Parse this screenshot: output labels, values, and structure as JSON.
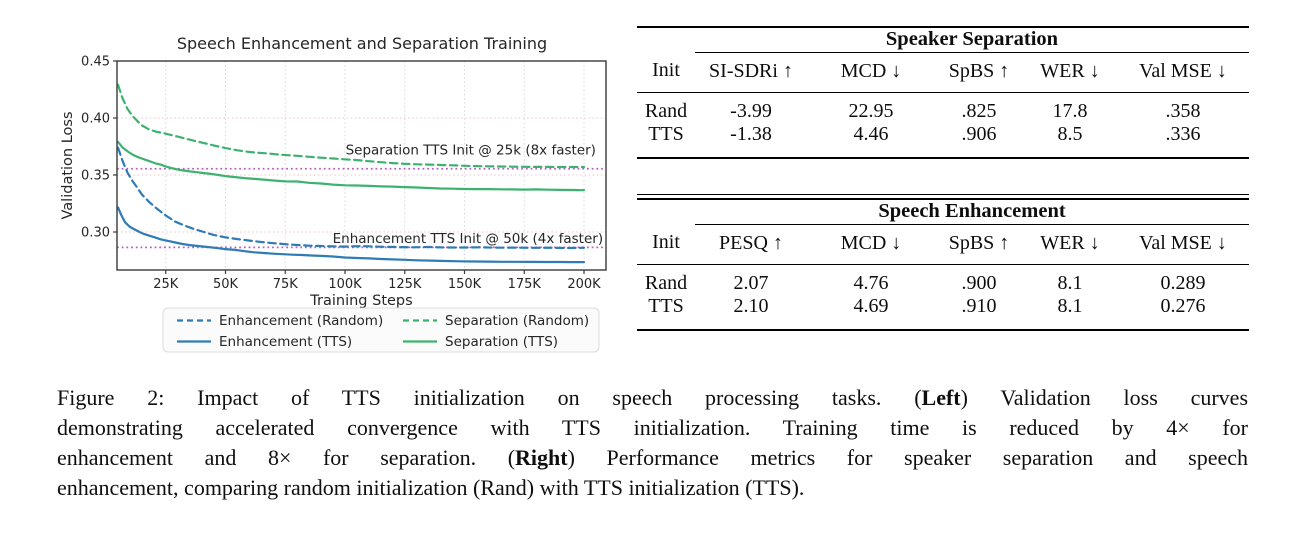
{
  "chart_data": {
    "type": "line",
    "title": "Speech Enhancement and Separation Training",
    "xlabel": "Training Steps",
    "ylabel": "Validation Loss",
    "x_unit": "thousands of steps",
    "xlim_k": [
      4.6,
      209
    ],
    "ylim": [
      0.2667,
      0.45
    ],
    "grid": true,
    "legend_position": "below",
    "xticks": [
      {
        "value": 25,
        "label": "25K"
      },
      {
        "value": 50,
        "label": "50K"
      },
      {
        "value": 75,
        "label": "75K"
      },
      {
        "value": 100,
        "label": "100K"
      },
      {
        "value": 125,
        "label": "125K"
      },
      {
        "value": 150,
        "label": "150K"
      },
      {
        "value": 175,
        "label": "175K"
      },
      {
        "value": 200,
        "label": "200K"
      }
    ],
    "yticks": [
      {
        "value": 0.45,
        "label": "0.45"
      },
      {
        "value": 0.4,
        "label": "0.40"
      },
      {
        "value": 0.35,
        "label": "0.35"
      },
      {
        "value": 0.3,
        "label": "0.30"
      }
    ],
    "grid_y": [
      0.4,
      0.35,
      0.3
    ],
    "style": {
      "grid_x_color": "#d8d8d8",
      "grid_y_color": "#f0c3ca",
      "ref_color": "#b85fc2",
      "annotation_color": "#9e6bbf",
      "blue": "#2e7bb5",
      "green": "#3db26f"
    },
    "reference_lines": [
      {
        "y": 0.3555,
        "meaning": "Separation TTS loss level at 25k"
      },
      {
        "y": 0.2865,
        "meaning": "Enhancement TTS loss level at 50k"
      }
    ],
    "annotations": [
      {
        "text": "Separation TTS Init @ 25k (8x faster)",
        "x": 205,
        "y": 0.3715
      },
      {
        "text": "Enhancement TTS Init @ 50k (4x faster)",
        "x": 208,
        "y": 0.294
      }
    ],
    "series": [
      {
        "name": "Enhancement (Random)",
        "color": "#2e7bb5",
        "dashed": true,
        "points": [
          [
            5,
            0.374
          ],
          [
            7,
            0.362
          ],
          [
            9,
            0.352
          ],
          [
            11,
            0.345
          ],
          [
            13,
            0.339
          ],
          [
            15,
            0.333
          ],
          [
            18,
            0.3265
          ],
          [
            21,
            0.321
          ],
          [
            25,
            0.3145
          ],
          [
            29,
            0.309
          ],
          [
            33,
            0.3055
          ],
          [
            37,
            0.3025
          ],
          [
            41,
            0.3
          ],
          [
            45,
            0.2975
          ],
          [
            50,
            0.2953
          ],
          [
            55,
            0.2938
          ],
          [
            60,
            0.2925
          ],
          [
            65,
            0.2912
          ],
          [
            70,
            0.2902
          ],
          [
            75,
            0.2893
          ],
          [
            80,
            0.2886
          ],
          [
            85,
            0.288
          ],
          [
            90,
            0.2877
          ],
          [
            95,
            0.2874
          ],
          [
            100,
            0.2872
          ],
          [
            107,
            0.2876
          ],
          [
            114,
            0.2871
          ],
          [
            121,
            0.2868
          ],
          [
            128,
            0.2866
          ],
          [
            135,
            0.2868
          ],
          [
            142,
            0.2864
          ],
          [
            150,
            0.2864
          ],
          [
            157,
            0.2866
          ],
          [
            164,
            0.2862
          ],
          [
            171,
            0.2863
          ],
          [
            178,
            0.2861
          ],
          [
            185,
            0.2862
          ],
          [
            192,
            0.286
          ],
          [
            200,
            0.2861
          ]
        ]
      },
      {
        "name": "Enhancement (TTS)",
        "color": "#2e7bb5",
        "dashed": false,
        "points": [
          [
            5,
            0.3215
          ],
          [
            6.5,
            0.3145
          ],
          [
            8,
            0.3085
          ],
          [
            10,
            0.3045
          ],
          [
            12,
            0.3022
          ],
          [
            14,
            0.3
          ],
          [
            16,
            0.2982
          ],
          [
            18,
            0.2968
          ],
          [
            20,
            0.2955
          ],
          [
            23,
            0.2935
          ],
          [
            26,
            0.2922
          ],
          [
            29,
            0.2908
          ],
          [
            32,
            0.2895
          ],
          [
            35,
            0.2885
          ],
          [
            38,
            0.2878
          ],
          [
            41,
            0.2872
          ],
          [
            44,
            0.2865
          ],
          [
            47,
            0.2858
          ],
          [
            50,
            0.285
          ],
          [
            54,
            0.2843
          ],
          [
            58,
            0.2832
          ],
          [
            62,
            0.2822
          ],
          [
            66,
            0.2816
          ],
          [
            70,
            0.281
          ],
          [
            74,
            0.2805
          ],
          [
            78,
            0.2801
          ],
          [
            82,
            0.2798
          ],
          [
            86,
            0.2794
          ],
          [
            90,
            0.279
          ],
          [
            95,
            0.2785
          ],
          [
            100,
            0.2776
          ],
          [
            105,
            0.2772
          ],
          [
            110,
            0.2768
          ],
          [
            115,
            0.2763
          ],
          [
            120,
            0.276
          ],
          [
            125,
            0.2756
          ],
          [
            130,
            0.2752
          ],
          [
            136,
            0.2749
          ],
          [
            142,
            0.2746
          ],
          [
            148,
            0.2743
          ],
          [
            154,
            0.2741
          ],
          [
            160,
            0.274
          ],
          [
            166,
            0.2739
          ],
          [
            172,
            0.2739
          ],
          [
            178,
            0.2738
          ],
          [
            184,
            0.2737
          ],
          [
            190,
            0.2737
          ],
          [
            195,
            0.2736
          ],
          [
            200,
            0.2736
          ]
        ]
      },
      {
        "name": "Separation (Random)",
        "color": "#3db26f",
        "dashed": true,
        "points": [
          [
            5,
            0.429
          ],
          [
            7,
            0.417
          ],
          [
            9,
            0.408
          ],
          [
            11,
            0.402
          ],
          [
            13,
            0.3975
          ],
          [
            15,
            0.3935
          ],
          [
            18,
            0.39
          ],
          [
            21,
            0.388
          ],
          [
            25,
            0.3862
          ],
          [
            29,
            0.3842
          ],
          [
            33,
            0.382
          ],
          [
            37,
            0.38
          ],
          [
            41,
            0.378
          ],
          [
            45,
            0.376
          ],
          [
            50,
            0.3736
          ],
          [
            55,
            0.3717
          ],
          [
            60,
            0.3702
          ],
          [
            64,
            0.3695
          ],
          [
            68,
            0.3689
          ],
          [
            72,
            0.368
          ],
          [
            76,
            0.3674
          ],
          [
            80,
            0.3668
          ],
          [
            85,
            0.366
          ],
          [
            90,
            0.3652
          ],
          [
            95,
            0.3645
          ],
          [
            100,
            0.3638
          ],
          [
            105,
            0.3631
          ],
          [
            110,
            0.3621
          ],
          [
            115,
            0.3612
          ],
          [
            120,
            0.3604
          ],
          [
            125,
            0.3598
          ],
          [
            130,
            0.3594
          ],
          [
            135,
            0.3591
          ],
          [
            140,
            0.3588
          ],
          [
            145,
            0.3585
          ],
          [
            150,
            0.3581
          ],
          [
            155,
            0.3578
          ],
          [
            160,
            0.3576
          ],
          [
            165,
            0.3575
          ],
          [
            170,
            0.3573
          ],
          [
            175,
            0.3572
          ],
          [
            180,
            0.3571
          ],
          [
            185,
            0.3571
          ],
          [
            190,
            0.357
          ],
          [
            195,
            0.357
          ],
          [
            200,
            0.357
          ]
        ]
      },
      {
        "name": "Separation (TTS)",
        "color": "#3db26f",
        "dashed": false,
        "points": [
          [
            5,
            0.379
          ],
          [
            7,
            0.374
          ],
          [
            9,
            0.3708
          ],
          [
            11,
            0.368
          ],
          [
            13,
            0.366
          ],
          [
            15,
            0.3645
          ],
          [
            17,
            0.363
          ],
          [
            19,
            0.3615
          ],
          [
            21,
            0.36
          ],
          [
            23,
            0.359
          ],
          [
            25,
            0.3575
          ],
          [
            27,
            0.3563
          ],
          [
            29,
            0.3553
          ],
          [
            32,
            0.354
          ],
          [
            35,
            0.3532
          ],
          [
            38,
            0.3525
          ],
          [
            41,
            0.3517
          ],
          [
            44,
            0.351
          ],
          [
            47,
            0.35
          ],
          [
            50,
            0.349
          ],
          [
            54,
            0.3482
          ],
          [
            58,
            0.3473
          ],
          [
            62,
            0.3466
          ],
          [
            66,
            0.346
          ],
          [
            70,
            0.3452
          ],
          [
            75,
            0.3444
          ],
          [
            80,
            0.3443
          ],
          [
            85,
            0.3432
          ],
          [
            90,
            0.3425
          ],
          [
            95,
            0.3416
          ],
          [
            100,
            0.341
          ],
          [
            105,
            0.3408
          ],
          [
            110,
            0.3404
          ],
          [
            115,
            0.34
          ],
          [
            120,
            0.3398
          ],
          [
            125,
            0.3394
          ],
          [
            130,
            0.339
          ],
          [
            135,
            0.3386
          ],
          [
            140,
            0.3382
          ],
          [
            145,
            0.338
          ],
          [
            150,
            0.3377
          ],
          [
            155,
            0.3376
          ],
          [
            160,
            0.3376
          ],
          [
            165,
            0.3375
          ],
          [
            170,
            0.3374
          ],
          [
            175,
            0.3372
          ],
          [
            180,
            0.3374
          ],
          [
            185,
            0.3371
          ],
          [
            190,
            0.3369
          ],
          [
            195,
            0.3368
          ],
          [
            200,
            0.3367
          ]
        ]
      }
    ]
  },
  "tables": [
    {
      "title": "Speaker Separation",
      "col0": "Init",
      "columns": [
        "SI-SDRi ↑",
        "MCD ↓",
        "SpBS ↑",
        "WER ↓",
        "Val MSE ↓"
      ],
      "rows": [
        [
          "Rand",
          "-3.99",
          "22.95",
          ".825",
          "17.8",
          ".358"
        ],
        [
          "TTS",
          "-1.38",
          "4.46",
          ".906",
          "8.5",
          ".336"
        ]
      ]
    },
    {
      "title": "Speech Enhancement",
      "col0": "Init",
      "columns": [
        "PESQ ↑",
        "MCD ↓",
        "SpBS ↑",
        "WER ↓",
        "Val MSE ↓"
      ],
      "rows": [
        [
          "Rand",
          "2.07",
          "4.76",
          ".900",
          "8.1",
          "0.289"
        ],
        [
          "TTS",
          "2.10",
          "4.69",
          ".910",
          "8.1",
          "0.276"
        ]
      ]
    }
  ],
  "caption": {
    "line1_pre": "Figure 2: Impact of TTS initialization on speech processing tasks. (",
    "line1_bold": "Left",
    "line1_post": ") Validation loss curves",
    "line2": "demonstrating accelerated convergence with TTS initialization. Training time is reduced by 4× for",
    "line3_pre": "enhancement and 8× for separation. (",
    "line3_bold": "Right",
    "line3_post": ") Performance metrics for speaker separation and speech",
    "line4": "enhancement, comparing random initialization (Rand) with TTS initialization (TTS)."
  }
}
